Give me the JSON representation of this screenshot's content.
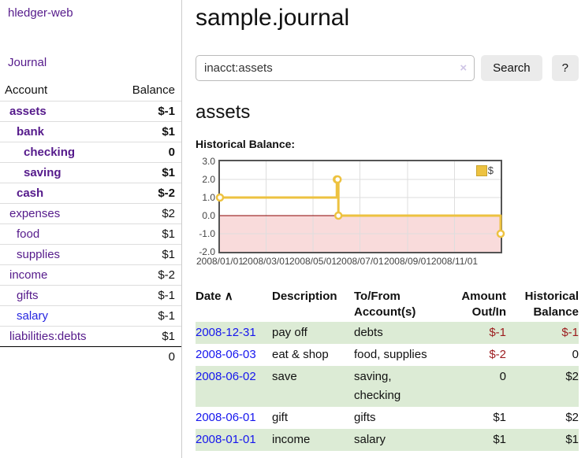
{
  "app": {
    "title": "hledger-web"
  },
  "sidebar": {
    "journal_link": "Journal",
    "accounts_header": {
      "account": "Account",
      "balance": "Balance"
    },
    "accounts": [
      {
        "name": "assets",
        "balance": "$-1",
        "level": 1,
        "bold": true,
        "negative": "strong"
      },
      {
        "name": "bank",
        "balance": "$1",
        "level": 2,
        "bold": true,
        "negative": "none"
      },
      {
        "name": "checking",
        "balance": "0",
        "level": 3,
        "bold": true,
        "negative": "none"
      },
      {
        "name": "saving",
        "balance": "$1",
        "level": 3,
        "bold": true,
        "negative": "none"
      },
      {
        "name": "cash",
        "balance": "$-2",
        "level": 2,
        "bold": true,
        "negative": "strong"
      },
      {
        "name": "expenses",
        "balance": "$2",
        "level": 1,
        "bold": false,
        "negative": "none"
      },
      {
        "name": "food",
        "balance": "$1",
        "level": 2,
        "bold": false,
        "negative": "none"
      },
      {
        "name": "supplies",
        "balance": "$1",
        "level": 2,
        "bold": false,
        "negative": "none"
      },
      {
        "name": "income",
        "balance": "$-2",
        "level": 1,
        "bold": false,
        "negative": "muted"
      },
      {
        "name": "gifts",
        "balance": "$-1",
        "level": 2,
        "bold": false,
        "negative": "muted"
      },
      {
        "name": "salary",
        "balance": "$-1",
        "level": 2,
        "bold": false,
        "negative": "muted",
        "link_color": "blue"
      },
      {
        "name": "liabilities:debts",
        "balance": "$1",
        "level": 1,
        "bold": false,
        "negative": "none"
      }
    ],
    "total": "0"
  },
  "header": {
    "title": "sample.journal"
  },
  "search": {
    "value": "inacct:assets",
    "clear_icon": "×",
    "button_label": "Search",
    "help_label": "?"
  },
  "account_page": {
    "heading": "assets",
    "chart_label": "Historical Balance:"
  },
  "chart_data": {
    "type": "line",
    "step": true,
    "title": "Historical Balance",
    "x_range": [
      "2008-01-01",
      "2008-12-31"
    ],
    "ylim": [
      -2,
      3
    ],
    "y_ticks": [
      "3.0",
      "2.0",
      "1.0",
      "0.0",
      "-1.0",
      "-2.0"
    ],
    "x_ticks": [
      "2008/01/01",
      "2008/03/01",
      "2008/05/01",
      "2008/07/01",
      "2008/09/01",
      "2008/11/01"
    ],
    "grid": true,
    "series": [
      {
        "name": "$",
        "color": "#edc240",
        "points": [
          {
            "x": "2008-01-01",
            "y": 1
          },
          {
            "x": "2008-06-01",
            "y": 2
          },
          {
            "x": "2008-06-02",
            "y": 2
          },
          {
            "x": "2008-06-03",
            "y": 0
          },
          {
            "x": "2008-12-31",
            "y": -1
          }
        ]
      }
    ],
    "negative_region_fill": "#f9dbdb",
    "zero_line_color": "#8b0000",
    "grid_color": "#dedede",
    "border_color": "#545454",
    "legend": {
      "label": "$",
      "position": "top-right",
      "swatch_color": "#edc240"
    }
  },
  "register": {
    "columns": {
      "date": "Date",
      "sort_arrow": "∧",
      "description": "Description",
      "accounts": "To/From Account(s)",
      "amount": "Amount Out/In",
      "balance": "Historical Balance"
    },
    "rows": [
      {
        "date": "2008-12-31",
        "description": "pay off",
        "accounts": "debts",
        "amount": "$-1",
        "amount_negative": true,
        "balance": "$-1",
        "balance_negative": true
      },
      {
        "date": "2008-06-03",
        "description": "eat & shop",
        "accounts": "food, supplies",
        "amount": "$-2",
        "amount_negative": true,
        "balance": "0",
        "balance_negative": false
      },
      {
        "date": "2008-06-02",
        "description": "save",
        "accounts": "saving, checking",
        "amount": "0",
        "amount_negative": false,
        "balance": "$2",
        "balance_negative": false
      },
      {
        "date": "2008-06-01",
        "description": "gift",
        "accounts": "gifts",
        "amount": "$1",
        "amount_negative": false,
        "balance": "$2",
        "balance_negative": false
      },
      {
        "date": "2008-01-01",
        "description": "income",
        "accounts": "salary",
        "amount": "$1",
        "amount_negative": false,
        "balance": "$1",
        "balance_negative": false
      }
    ]
  }
}
